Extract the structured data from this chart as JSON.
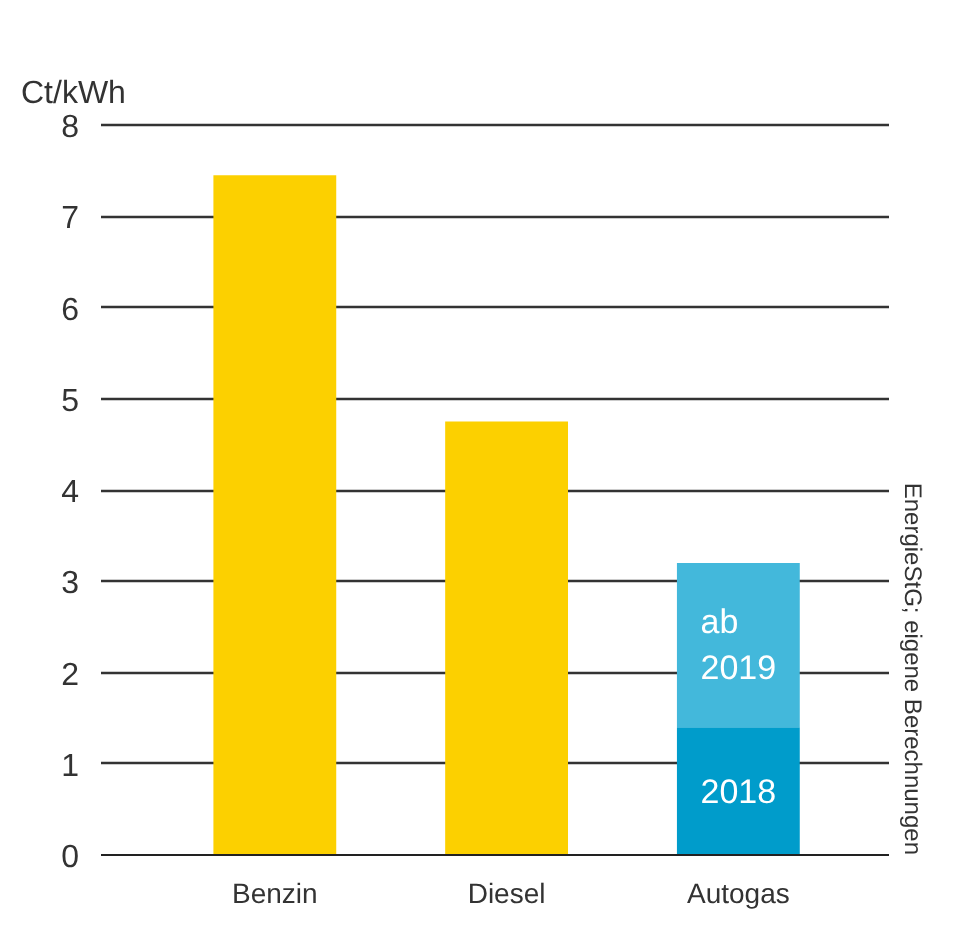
{
  "chart_data": {
    "type": "bar",
    "stacked": true,
    "ylabel": "Ct/kWh",
    "categories": [
      "Benzin",
      "Diesel",
      "Autogas"
    ],
    "series": [
      {
        "color": "#fcd000",
        "values": [
          7.45,
          4.75,
          null
        ]
      },
      {
        "name": "2018",
        "color": "#009ccb",
        "values": [
          null,
          null,
          1.4
        ]
      },
      {
        "name": "ab 2019",
        "color": "#43b8db",
        "values": [
          null,
          null,
          1.8
        ]
      }
    ],
    "ylim": [
      0,
      8
    ],
    "yticks": [
      0,
      1,
      2,
      3,
      4,
      5,
      6,
      7,
      8
    ],
    "grid": "y",
    "annotations": [
      "EnergieStG; eigene Berechnungen"
    ]
  }
}
